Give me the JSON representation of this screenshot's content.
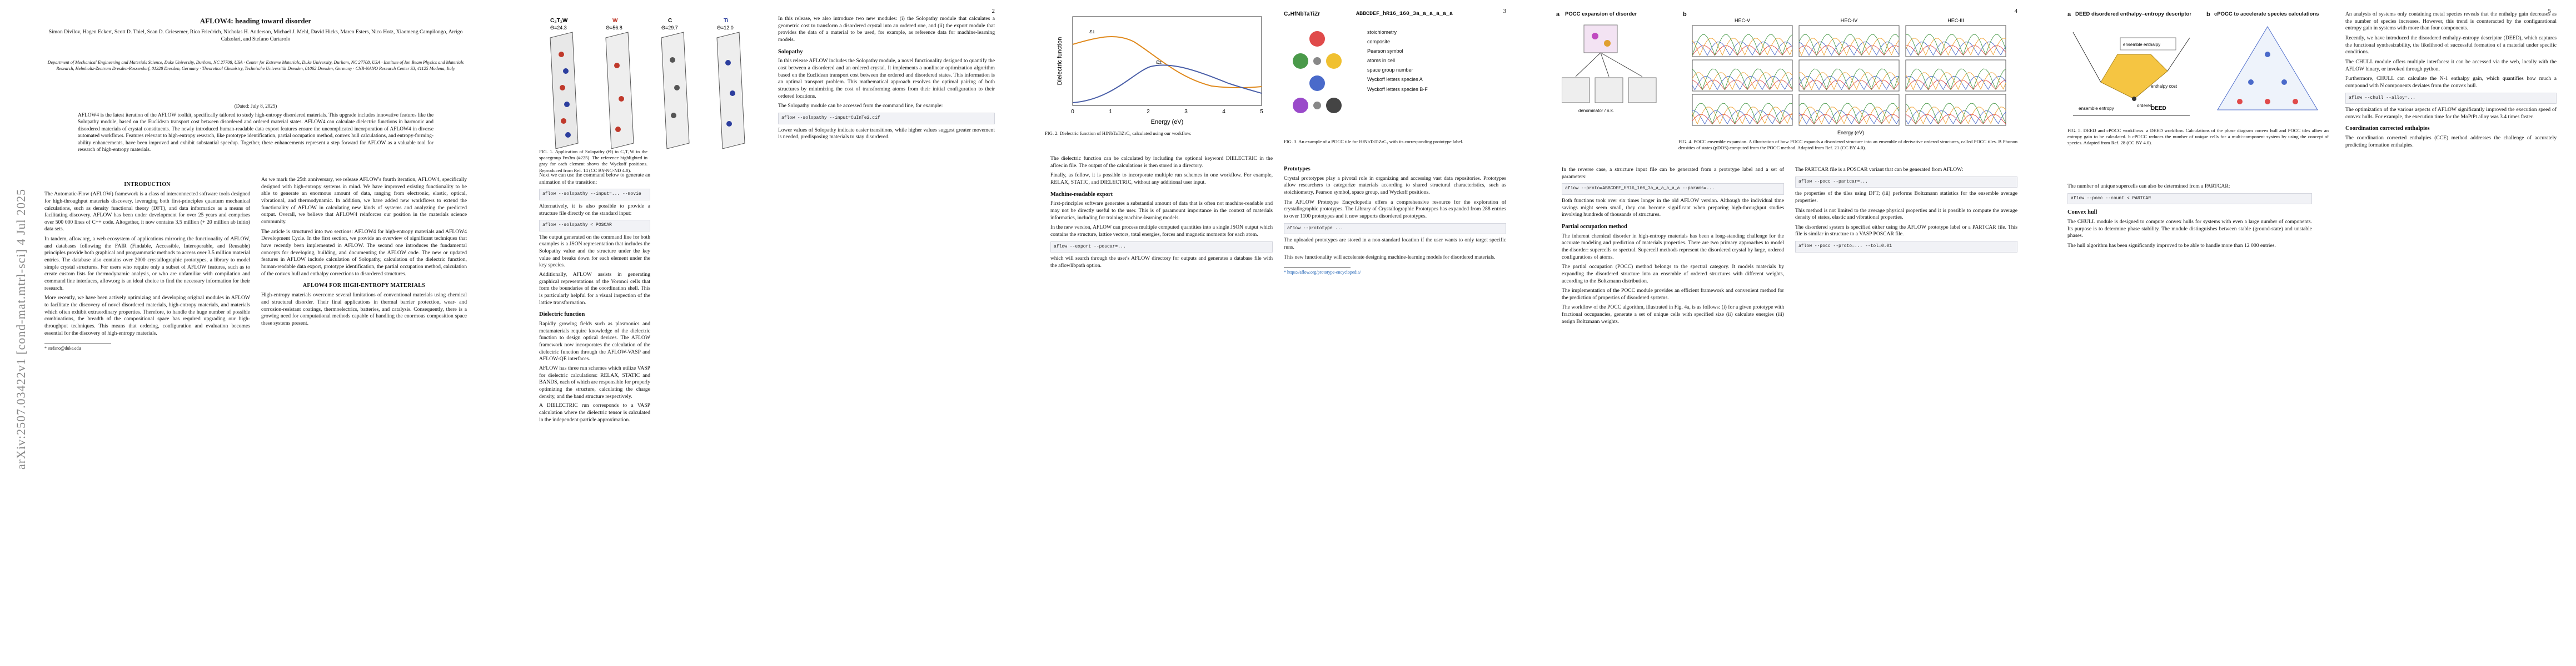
{
  "arxiv_id": "arXiv:2507.03422v1  [cond-mat.mtrl-sci]  4 Jul 2025",
  "page1": {
    "title": "AFLOW4: heading toward disorder",
    "authors": "Simon Divilov, Hagen Eckert, Scott D. Thiel, Sean D. Griesemer, Rico Friedrich, Nicholas H. Anderson, Michael J. Mehl, David Hicks, Marco Esters, Nico Hotz, Xiaomeng Campilongo, Arrigo Calzolari, and Stefano Curtarolo",
    "affiliations": "Department of Mechanical Engineering and Materials Science, Duke University, Durham, NC 27708, USA · Center for Extreme Materials, Duke University, Durham, NC 27708, USA · Institute of Ion Beam Physics and Materials Research, Helmholtz-Zentrum Dresden-Rossendorf, 01328 Dresden, Germany · Theoretical Chemistry, Technische Universität Dresden, 01062 Dresden, Germany · CNR-NANO Research Center S3, 41125 Modena, Italy",
    "date": "(Dated: July 8, 2025)",
    "abstract": "AFLOW4 is the latest iteration of the AFLOW toolkit, specifically tailored to study high-entropy disordered materials. This upgrade includes innovative features like the Solopathy module, based on the Euclidean transport cost between disordered and ordered material states. AFLOW4 can calculate dielectric functions in harmonic and disordered materials of crystal constituents. The newly introduced human-readable data export features ensure the uncomplicated incorporation of AFLOW4 in diverse automated workflows. Features relevant to high-entropy research, like prototype identification, partial occupation method, convex hull calculations, and entropy-forming-ability enhancements, have been improved and exhibit substantial speedup. Together, these enhancements represent a step forward for AFLOW as a valuable tool for research of high-entropy materials.",
    "intro_head": "INTRODUCTION",
    "intro_p1": "The Automatic-Flow (AFLOW) framework is a class of interconnected software tools designed for high-throughput materials discovery, leveraging both first-principles quantum mechanical calculations, such as density functional theory (DFT), and data informatics as a means of facilitating discovery. AFLOW has been under development for over 25 years and comprises over 500 000 lines of C++ code. Altogether, it now contains 3.5 million (+ 20 million ab initio) data sets.",
    "intro_p2": "In tandem, aflow.org, a web ecosystem of applications mirroring the functionality of AFLOW, and databases following the FAIR (Findable, Accessible, Interoperable, and Reusable) principles provide both graphical and programmatic methods to access over 3.5 million material entries. The database also contains over 2000 crystallographic prototypes, a library to model simple crystal structures. For users who require only a subset of AFLOW features, such as to create custom lists for thermodynamic analysis, or who are unfamiliar with compilation and command line interfaces, aflow.org is an ideal choice to find the necessary information for their research.",
    "intro_p3": "More recently, we have been actively optimizing and developing original modules in AFLOW to facilitate the discovery of novel disordered materials, high-entropy materials, and materials which often exhibit extraordinary properties. Therefore, to handle the huge number of possible combinations, the breadth of the compositional space has required upgrading our high-throughput techniques. This means that ordering, configuration and evaluation becomes essential for the discovery of high-entropy materials.",
    "col2_p1": "As we mark the 25th anniversary, we release AFLOW's fourth iteration, AFLOW4, specifically designed with high-entropy systems in mind. We have improved existing functionality to be able to generate an enormous amount of data, ranging from electronic, elastic, optical, vibrational, and thermodynamic. In addition, we have added new workflows to extend the functionality of AFLOW in calculating new kinds of systems and analyzing the predicted output. Overall, we believe that AFLOW4 reinforces our position in the materials science community.",
    "col2_p2": "The article is structured into two sections: AFLOW4 for high-entropy materials and AFLOW4 Development Cycle. In the first section, we provide an overview of significant techniques that have recently been implemented in AFLOW. The second one introduces the fundamental concepts for developing, building, and documenting the AFLOW code. The new or updated features in AFLOW include calculation of Solopathy, calculation of the dielectric function, human-readable data export, prototype identification, the partial occupation method, calculation of the convex hull and enthalpy corrections to disordered structures.",
    "col2_head": "AFLOW4 FOR HIGH-ENTROPY MATERIALS",
    "col2_p3": "High-entropy materials overcome several limitations of conventional materials using chemical and structural disorder. Their final applications in thermal barrier protection, wear- and corrosion-resistant coatings, thermoelectrics, batteries, and catalysis. Consequently, there is a growing need for computational methods capable of handling the enormous composition space these systems present.",
    "footnote": "* stefano@duke.edu"
  },
  "page2": {
    "num": "2",
    "p1": "In this release, we also introduce two new modules: (i) the Solopathy module that calculates a geometric cost to transform a disordered crystal into an ordered one, and (ii) the export module that provides the data of a material to be used, for example, as reference data for machine-learning models.",
    "solopathy_head": "Solopathy",
    "p2": "In this release AFLOW includes the Solopathy module, a novel functionality designed to quantify the cost between a disordered and an ordered crystal. It implements a nonlinear optimization algorithm based on the Euclidean transport cost between the ordered and disordered states. This information is an optimal transport problem. This mathematical approach resolves the optimal pairing of both structures by minimizing the cost of transforming atoms from their initial configuration to their ordered locations.",
    "p3": "The Solopathy module can be accessed from the command line, for example:",
    "code1": "aflow --solopathy --input=CuInTe2.cif",
    "p4": "Lower values of Solopathy indicate easier transitions, while higher values suggest greater movement is needed, predisposing materials to stay disordered.",
    "fig1_labels": [
      "C₂T₁W",
      "W",
      "C",
      "Ti"
    ],
    "fig1_values": [
      "Θ=24.3",
      "Θ=56.8",
      "Θ=29.7",
      "Θ=12.0"
    ],
    "fig1_caption": "FIG. 1. Application of Solopathy (Θ) to C₂T₁W in the spacegroup Fm3m (#225). The reference highlighted in gray for each element shows the Wyckoff positions. Reproduced from Ref. 14 (CC BY-NC-ND 4.0).",
    "p5": "Next we can use the command below to generate an animation of the transition:",
    "code2": "aflow --solopathy --input=... --movie",
    "p6": "Alternatively, it is also possible to provide a structure file directly on the standard input:",
    "code3": "aflow --solopathy < POSCAR",
    "p7": "The output generated on the command line for both examples is a JSON representation that includes the Solopathy value and the structure under the key value and breaks down for each element under the key species.",
    "p8": "Additionally, AFLOW assists in generating graphical representations of the Voronoi cells that form the boundaries of the coordination shell. This is particularly helpful for a visual inspection of the lattice transformation.",
    "dielectric_head": "Dielectric function",
    "p9": "Rapidly growing fields such as plasmonics and metamaterials require knowledge of the dielectric function to design optical devices. The AFLOW framework now incorporates the calculation of the dielectric function through the AFLOW-VASP and AFLOW-QE interfaces.",
    "p10": "AFLOW has three run schemes which utilize VASP for dielectric calculations: RELAX, STATIC and BANDS, each of which are responsible for properly optimizing the structure, calculating the charge density, and the band structure respectively.",
    "p11": "A DIELECTRIC run corresponds to a VASP calculation where the dielectric tensor is calculated in the independent-particle approximation."
  },
  "page3": {
    "num": "3",
    "fig2_title": "",
    "fig2_xlabel": "Energy (eV)",
    "fig2_ylabel": "Dielectric function",
    "fig2_ticks": [
      "0",
      "1",
      "2",
      "3",
      "4",
      "5"
    ],
    "fig2_curve_labels": [
      "ε₁",
      "ε₂"
    ],
    "fig2_caption": "FIG. 2. Dielectric function of HfNbTaTiZrC₅ calculated using our workflow.",
    "p1": "The dielectric function can be calculated by including the optional keyword DIELECTRIC in the aflow.in file. The output of the calculations is then stored in a directory.",
    "p2": "Finally, as follow, it is possible to incorporate multiple run schemes in one workflow. For example, RELAX, STATIC, and DIELECTRIC, without any additional user input.",
    "export_head": "Machine-readable export",
    "p3": "First-principles software generates a substantial amount of data that is often not machine-readable and may not be directly useful to the user. This is of paramount importance in the context of materials informatics, including for training machine-learning models.",
    "p4": "In the new version, AFLOW can process multiple computed quantities into a single JSON output which contains the structure, lattice vectors, total energies, forces and magnetic moments for each atom.",
    "code1": "aflow --export --poscar=...",
    "p5": "which will search through the user's AFLOW directory for outputs and generates a database file with the aflowlibpath option.",
    "pocc_label1": "C₂HfNbTaTiZr",
    "pocc_code": "ABBCDEF_hR16_160_3a_a_a_a_a_a",
    "pocc_legend": [
      "stoichiometry",
      "composite",
      "Pearson symbol",
      "atoms in cell",
      "space group number",
      "Wyckoff letters species A",
      "Wyckoff letters species B-F"
    ],
    "fig3_caption": "FIG. 3. An example of a POCC tile for HfNbTaTiZrC₅ with its corresponding prototype label.",
    "prototypes_head": "Prototypes",
    "p6": "Crystal prototypes play a pivotal role in organizing and accessing vast data repositories. Prototypes allow researchers to categorize materials according to shared structural characteristics, such as stoichiometry, Pearson symbol, space group, and Wyckoff positions.",
    "p7": "The AFLOW Prototype Encyclopedia offers a comprehensive resource for the exploration of crystallographic prototypes. The Library of Crystallographic Prototypes has expanded from 288 entries to over 1100 prototypes and it now supports disordered prototypes.",
    "code2": "aflow --prototype ...",
    "footnote": "* https://aflow.org/prototype-encyclopedia/",
    "p8": "The uploaded prototypes are stored in a non-standard location if the user wants to only target specific runs.",
    "p9": "This new functionality will accelerate designing machine-learning models for disordered materials."
  },
  "page4": {
    "num": "4",
    "fig4_title": "POCC expansion of disorder",
    "fig4_subtitle": "denominator / n.k.",
    "fig4_panel_titles": [
      "HEC-V",
      "HEC-IV",
      "HEC-III"
    ],
    "fig4_xlabel": "Energy (eV)",
    "fig4_ylabel": "g(ω)",
    "fig4_caption": "FIG. 4. POCC ensemble expansion. A illustration of how POCC expands a disordered structure into an ensemble of derivative ordered structures, called POCC tiles. B Phonon densities of states (pDOS) computed from the POCC method. Adapted from Ref. 21 (CC BY 4.0).",
    "p1": "In the reverse case, a structure input file can be generated from a prototype label and a set of parameters:",
    "code1": "aflow --proto=ABBCDEF_hR16_160_3a_a_a_a_a_a --params=...",
    "p2": "Both functions took over six times longer in the old AFLOW version. Although the individual time savings might seem small, they can become significant when preparing high-throughput studies involving hundreds of thousands of structures.",
    "pocc_head": "Partial occupation method",
    "p3": "The inherent chemical disorder in high-entropy materials has been a long-standing challenge for the accurate modeling and prediction of materials properties. There are two primary approaches to model the disorder: supercells or spectral. Supercell methods represent the disordered crystal by large, ordered configurations of atoms.",
    "p4": "The partial occupation (POCC) method belongs to the spectral category. It models materials by expanding the disordered structure into an ensemble of ordered structures with different weights, according to the Boltzmann distribution.",
    "p5": "The implementation of the POCC module provides an efficient framework and convenient method for the prediction of properties of disordered systems.",
    "p6": "The workflow of the POCC algorithm, illustrated in Fig. 4a, is as follows: (i) for a given prototype with fractional occupancies, generate a set of unique cells with specified size (ii) calculate energies (iii) assign Boltzmann weights.",
    "p7": "The PARTCAR file is a POSCAR variant that can be generated from AFLOW:",
    "code2": "aflow --pocc --partcar=...",
    "p8": "the properties of the tiles using DFT; (iii) performs Boltzmann statistics for the ensemble average properties.",
    "p9": "This method is not limited to the average physical properties and it is possible to compute the average density of states, elastic and vibrational properties.",
    "p10": "The disordered system is specified either using the AFLOW prototype label or a PARTCAR file. This file is similar in structure to a VASP POSCAR file.",
    "code3": "aflow --pocc --proto=... --tol=0.01"
  },
  "page5": {
    "num": "5",
    "fig5a_title": "DEED disordered enthalpy–entropy descriptor",
    "fig5b_title": "cPOCC to accelerate species calculations",
    "fig5_labels": [
      "ensemble enthalpy",
      "ensemble entropy",
      "ordered",
      "enthalpy cost",
      "DEED"
    ],
    "fig5_caption": "FIG. 5. DEED and cPOCC workflows. a DEED workflow. Calculations of the phase diagram convex hull and POCC tiles allow an entropy gain to be calculated. b cPOCC reduces the number of unique cells for a multi-component system by using the concept of species. Adapted from Ref. 28 (CC BY 4.0).",
    "p1": "An analysis of systems only containing metal species reveals that the enthalpy gain decreases as the number of species increases. However, this trend is counteracted by the configurational entropy gain in systems with more than four components.",
    "p2": "Recently, we have introduced the disordered enthalpy-entropy descriptor (DEED), which captures the functional synthesizability, the likelihood of successful formation of a material under specific conditions.",
    "p3": "The number of unique supercells can also be determined from a PARTCAR:",
    "code1": "aflow --pocc --count < PARTCAR",
    "convex_head": "Convex hull",
    "p4": "The CHULL module is designed to compute convex hulls for systems with even a large number of components. Its purpose is to determine phase stability. The module distinguishes between stable (ground-state) and unstable phases.",
    "p5": "The hull algorithm has been significantly improved to be able to handle more than 12 000 entries.",
    "p6": "The CHULL module offers multiple interfaces: it can be accessed via the web, locally with the AFLOW binary, or invoked through python.",
    "p7": "Furthermore, CHULL can calculate the N-1 enthalpy gain, which quantifies how much a compound with N components deviates from the convex hull.",
    "code2": "aflow --chull --alloy=...",
    "p8": "The optimization of the various aspects of AFLOW significantly improved the execution speed of convex hulls. For example, the execution time for the MoPtPt alloy was 3.4 times faster.",
    "coord_head": "Coordination corrected enthalpies",
    "p9": "The coordination corrected enthalpies (CCE) method addresses the challenge of accurately predicting formation enthalpies."
  }
}
